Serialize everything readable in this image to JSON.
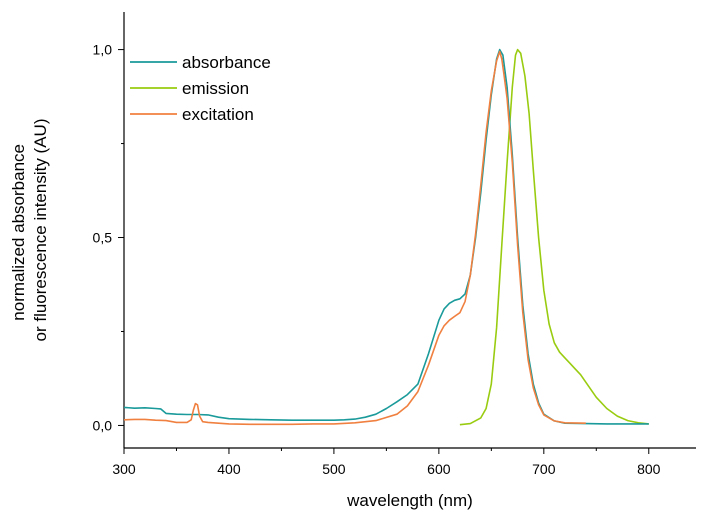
{
  "chart_data": {
    "type": "line",
    "xlabel": "wavelength (nm)",
    "ylabel_lines": [
      "normalized absorbance",
      "or fluorescence intensity (AU)"
    ],
    "xlim": [
      300,
      845
    ],
    "ylim": [
      -0.06,
      1.1
    ],
    "x_ticks": [
      300,
      400,
      500,
      600,
      700,
      800
    ],
    "x_tick_labels": [
      "300",
      "400",
      "500",
      "600",
      "700",
      "800"
    ],
    "y_ticks": [
      0,
      0.5,
      1
    ],
    "y_tick_labels": [
      "0,0",
      "0,5",
      "1,0"
    ],
    "legend_position": "top-left",
    "grid": false,
    "series": [
      {
        "name": "absorbance",
        "color": "#1a9a9a",
        "points": [
          [
            300,
            0.048
          ],
          [
            310,
            0.046
          ],
          [
            320,
            0.047
          ],
          [
            330,
            0.045
          ],
          [
            335,
            0.044
          ],
          [
            340,
            0.032
          ],
          [
            350,
            0.03
          ],
          [
            360,
            0.029
          ],
          [
            370,
            0.029
          ],
          [
            380,
            0.028
          ],
          [
            390,
            0.022
          ],
          [
            400,
            0.018
          ],
          [
            420,
            0.016
          ],
          [
            440,
            0.015
          ],
          [
            460,
            0.014
          ],
          [
            480,
            0.014
          ],
          [
            500,
            0.014
          ],
          [
            510,
            0.015
          ],
          [
            520,
            0.017
          ],
          [
            530,
            0.022
          ],
          [
            540,
            0.03
          ],
          [
            550,
            0.045
          ],
          [
            560,
            0.063
          ],
          [
            570,
            0.082
          ],
          [
            580,
            0.11
          ],
          [
            590,
            0.19
          ],
          [
            600,
            0.28
          ],
          [
            605,
            0.31
          ],
          [
            610,
            0.325
          ],
          [
            615,
            0.333
          ],
          [
            620,
            0.337
          ],
          [
            625,
            0.35
          ],
          [
            630,
            0.4
          ],
          [
            635,
            0.5
          ],
          [
            640,
            0.62
          ],
          [
            645,
            0.76
          ],
          [
            650,
            0.88
          ],
          [
            655,
            0.975
          ],
          [
            658,
            1.0
          ],
          [
            661,
            0.985
          ],
          [
            665,
            0.9
          ],
          [
            670,
            0.72
          ],
          [
            675,
            0.5
          ],
          [
            680,
            0.32
          ],
          [
            685,
            0.19
          ],
          [
            690,
            0.11
          ],
          [
            695,
            0.06
          ],
          [
            700,
            0.03
          ],
          [
            710,
            0.012
          ],
          [
            720,
            0.006
          ],
          [
            740,
            0.005
          ],
          [
            760,
            0.004
          ],
          [
            780,
            0.004
          ],
          [
            800,
            0.004
          ]
        ]
      },
      {
        "name": "emission",
        "color": "#99cc11",
        "points": [
          [
            620,
            0.002
          ],
          [
            630,
            0.005
          ],
          [
            640,
            0.02
          ],
          [
            645,
            0.045
          ],
          [
            650,
            0.11
          ],
          [
            655,
            0.26
          ],
          [
            660,
            0.48
          ],
          [
            665,
            0.7
          ],
          [
            670,
            0.9
          ],
          [
            673,
            0.985
          ],
          [
            675,
            1.0
          ],
          [
            678,
            0.99
          ],
          [
            682,
            0.93
          ],
          [
            686,
            0.83
          ],
          [
            690,
            0.68
          ],
          [
            695,
            0.5
          ],
          [
            700,
            0.36
          ],
          [
            705,
            0.27
          ],
          [
            710,
            0.22
          ],
          [
            715,
            0.195
          ],
          [
            720,
            0.18
          ],
          [
            725,
            0.165
          ],
          [
            730,
            0.15
          ],
          [
            735,
            0.135
          ],
          [
            740,
            0.115
          ],
          [
            745,
            0.095
          ],
          [
            750,
            0.075
          ],
          [
            760,
            0.045
          ],
          [
            770,
            0.025
          ],
          [
            780,
            0.013
          ],
          [
            790,
            0.007
          ],
          [
            800,
            0.004
          ]
        ]
      },
      {
        "name": "excitation",
        "color": "#f08040",
        "points": [
          [
            300,
            0.015
          ],
          [
            310,
            0.016
          ],
          [
            320,
            0.016
          ],
          [
            330,
            0.014
          ],
          [
            340,
            0.013
          ],
          [
            350,
            0.008
          ],
          [
            360,
            0.008
          ],
          [
            364,
            0.015
          ],
          [
            366,
            0.04
          ],
          [
            368,
            0.058
          ],
          [
            370,
            0.055
          ],
          [
            372,
            0.025
          ],
          [
            375,
            0.01
          ],
          [
            380,
            0.008
          ],
          [
            390,
            0.006
          ],
          [
            400,
            0.004
          ],
          [
            420,
            0.003
          ],
          [
            440,
            0.003
          ],
          [
            460,
            0.003
          ],
          [
            480,
            0.004
          ],
          [
            500,
            0.004
          ],
          [
            520,
            0.007
          ],
          [
            540,
            0.013
          ],
          [
            560,
            0.03
          ],
          [
            570,
            0.052
          ],
          [
            580,
            0.09
          ],
          [
            590,
            0.16
          ],
          [
            600,
            0.24
          ],
          [
            605,
            0.265
          ],
          [
            610,
            0.28
          ],
          [
            615,
            0.29
          ],
          [
            620,
            0.3
          ],
          [
            625,
            0.33
          ],
          [
            630,
            0.4
          ],
          [
            635,
            0.51
          ],
          [
            640,
            0.64
          ],
          [
            645,
            0.78
          ],
          [
            650,
            0.89
          ],
          [
            655,
            0.97
          ],
          [
            658,
            0.995
          ],
          [
            660,
            0.975
          ],
          [
            662,
            0.935
          ],
          [
            665,
            0.87
          ],
          [
            670,
            0.7
          ],
          [
            675,
            0.48
          ],
          [
            680,
            0.3
          ],
          [
            685,
            0.175
          ],
          [
            690,
            0.1
          ],
          [
            695,
            0.055
          ],
          [
            700,
            0.028
          ],
          [
            710,
            0.012
          ],
          [
            720,
            0.007
          ],
          [
            740,
            0.006
          ]
        ]
      }
    ]
  }
}
